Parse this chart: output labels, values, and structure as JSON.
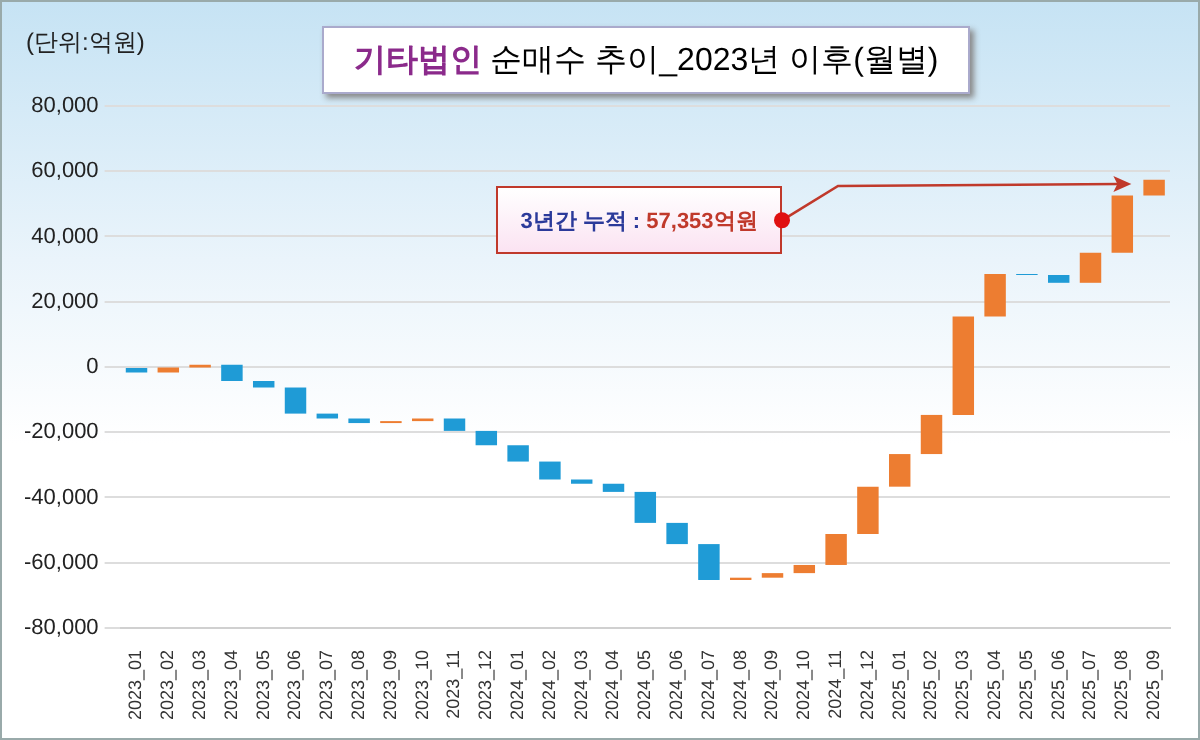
{
  "chart_data": {
    "type": "bar",
    "title": "기타법인 순매수 추이_2023년 이후(월별)",
    "ylabel": "(단위:억원)",
    "categories": [
      "2023_01",
      "2023_02",
      "2023_03",
      "2023_04",
      "2023_05",
      "2023_06",
      "2023_07",
      "2023_08",
      "2023_09",
      "2023_10",
      "2023_11",
      "2023_12",
      "2024_01",
      "2024_02",
      "2024_03",
      "2024_04",
      "2024_05",
      "2024_06",
      "2024_07",
      "2024_08",
      "2024_09",
      "2024_10",
      "2024_11",
      "2024_12",
      "2025_01",
      "2025_02",
      "2025_03",
      "2025_04",
      "2025_05",
      "2025_06",
      "2025_07",
      "2025_08",
      "2025_09"
    ],
    "values": [
      -1700,
      1500,
      900,
      -5000,
      -2000,
      -8000,
      -1500,
      -1400,
      600,
      800,
      -3800,
      -4400,
      -5000,
      -5500,
      -1300,
      -2500,
      -9500,
      -6500,
      -11000,
      700,
      1400,
      2500,
      9500,
      14500,
      10000,
      12000,
      30200,
      13000,
      -300,
      -2400,
      9200,
      17600,
      4800
    ],
    "base": [
      0,
      -1700,
      -200,
      700,
      -4300,
      -6300,
      -14300,
      -15800,
      -17200,
      -16600,
      -15800,
      -19600,
      -24000,
      -29000,
      -34500,
      -35800,
      -38300,
      -47800,
      -54300,
      -65300,
      -64600,
      -63200,
      -60700,
      -51200,
      -36700,
      -26700,
      -14700,
      15500,
      28500,
      28200,
      25800,
      35000,
      52600
    ],
    "colors": [
      "#1f9bd6",
      "#ed7d31",
      "#ed7d31",
      "#1f9bd6",
      "#1f9bd6",
      "#1f9bd6",
      "#1f9bd6",
      "#1f9bd6",
      "#ed7d31",
      "#ed7d31",
      "#1f9bd6",
      "#1f9bd6",
      "#1f9bd6",
      "#1f9bd6",
      "#1f9bd6",
      "#1f9bd6",
      "#1f9bd6",
      "#1f9bd6",
      "#1f9bd6",
      "#ed7d31",
      "#ed7d31",
      "#ed7d31",
      "#ed7d31",
      "#ed7d31",
      "#ed7d31",
      "#ed7d31",
      "#ed7d31",
      "#ed7d31",
      "#1f9bd6",
      "#1f9bd6",
      "#ed7d31",
      "#ed7d31",
      "#ed7d31"
    ],
    "ylim": [
      -80000,
      80000
    ],
    "yticks": [
      {
        "value": -80000,
        "label": "-80,000"
      },
      {
        "value": -60000,
        "label": "-60,000"
      },
      {
        "value": -40000,
        "label": "-40,000"
      },
      {
        "value": -20000,
        "label": "-20,000"
      },
      0,
      {
        "value": 20000,
        "label": "20,000"
      },
      {
        "value": 40000,
        "label": "40,000"
      },
      {
        "value": 60000,
        "label": "60,000"
      },
      {
        "value": 80000,
        "label": "80,000"
      }
    ],
    "grid": "y",
    "legend": false,
    "annotations": [
      "3년간 누적 : 57,353억원"
    ]
  }
}
